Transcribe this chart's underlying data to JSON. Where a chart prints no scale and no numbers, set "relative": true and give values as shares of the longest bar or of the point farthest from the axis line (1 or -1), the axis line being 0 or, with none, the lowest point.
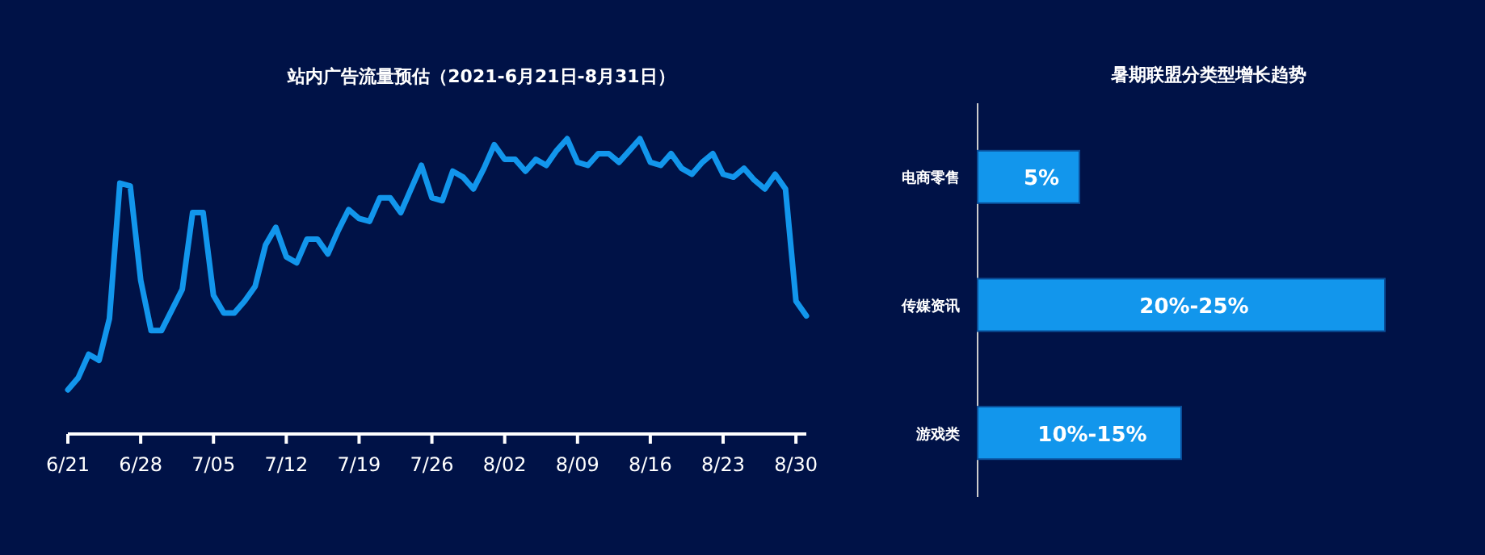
{
  "chart_data": [
    {
      "type": "line",
      "title": "站内广告流量预估（2021-6月21日-8月31日）",
      "relative": true,
      "x": [
        "2021-06-21",
        "2021-06-22",
        "2021-06-23",
        "2021-06-24",
        "2021-06-25",
        "2021-06-26",
        "2021-06-27",
        "2021-06-28",
        "2021-06-29",
        "2021-06-30",
        "2021-07-01",
        "2021-07-02",
        "2021-07-03",
        "2021-07-04",
        "2021-07-05",
        "2021-07-06",
        "2021-07-07",
        "2021-07-08",
        "2021-07-09",
        "2021-07-10",
        "2021-07-11",
        "2021-07-12",
        "2021-07-13",
        "2021-07-14",
        "2021-07-15",
        "2021-07-16",
        "2021-07-17",
        "2021-07-18",
        "2021-07-19",
        "2021-07-20",
        "2021-07-21",
        "2021-07-22",
        "2021-07-23",
        "2021-07-24",
        "2021-07-25",
        "2021-07-26",
        "2021-07-27",
        "2021-07-28",
        "2021-07-29",
        "2021-07-30",
        "2021-07-31",
        "2021-08-01",
        "2021-08-02",
        "2021-08-03",
        "2021-08-04",
        "2021-08-05",
        "2021-08-06",
        "2021-08-07",
        "2021-08-08",
        "2021-08-09",
        "2021-08-10",
        "2021-08-11",
        "2021-08-12",
        "2021-08-13",
        "2021-08-14",
        "2021-08-15",
        "2021-08-16",
        "2021-08-17",
        "2021-08-18",
        "2021-08-19",
        "2021-08-20",
        "2021-08-21",
        "2021-08-22",
        "2021-08-23",
        "2021-08-24",
        "2021-08-25",
        "2021-08-26",
        "2021-08-27",
        "2021-08-28",
        "2021-08-29",
        "2021-08-30",
        "2021-08-31"
      ],
      "series": [
        {
          "color": "#1296ec",
          "values": [
            0.15,
            0.19,
            0.27,
            0.25,
            0.39,
            0.85,
            0.84,
            0.52,
            0.35,
            0.35,
            0.42,
            0.49,
            0.75,
            0.75,
            0.47,
            0.41,
            0.41,
            0.45,
            0.5,
            0.64,
            0.7,
            0.6,
            0.58,
            0.66,
            0.66,
            0.61,
            0.69,
            0.76,
            0.73,
            0.72,
            0.8,
            0.8,
            0.75,
            0.83,
            0.91,
            0.8,
            0.79,
            0.89,
            0.87,
            0.83,
            0.9,
            0.98,
            0.93,
            0.93,
            0.89,
            0.93,
            0.91,
            0.96,
            1.0,
            0.92,
            0.91,
            0.95,
            0.95,
            0.92,
            0.96,
            1.0,
            0.92,
            0.91,
            0.95,
            0.9,
            0.88,
            0.92,
            0.95,
            0.88,
            0.87,
            0.9,
            0.86,
            0.83,
            0.88,
            0.83,
            0.45,
            0.4
          ]
        }
      ],
      "xlim": [
        "2021-06-21",
        "2021-08-31"
      ],
      "xticks": [
        {
          "value": "2021-06-21",
          "label": "6/21"
        },
        {
          "value": "2021-06-28",
          "label": "6/28"
        },
        {
          "value": "2021-07-05",
          "label": "7/05"
        },
        {
          "value": "2021-07-12",
          "label": "7/12"
        },
        {
          "value": "2021-07-19",
          "label": "7/19"
        },
        {
          "value": "2021-07-26",
          "label": "7/26"
        },
        {
          "value": "2021-08-02",
          "label": "8/02"
        },
        {
          "value": "2021-08-09",
          "label": "8/09"
        },
        {
          "value": "2021-08-16",
          "label": "8/16"
        },
        {
          "value": "2021-08-23",
          "label": "8/23"
        },
        {
          "value": "2021-08-30",
          "label": "8/30"
        }
      ],
      "tick_labels": "x",
      "marker": "none",
      "line_style": "solid"
    },
    {
      "type": "bar",
      "title": "暑期联盟分类型增长趋势",
      "orientation": "horizontal",
      "xlim": [
        0,
        20
      ],
      "categories": [
        "电商零售",
        "传媒资讯",
        "游戏类"
      ],
      "series": [
        {
          "color": "#1296ec",
          "values": [
            5,
            20,
            10
          ],
          "value_labels": [
            "5%",
            "20%-25%",
            "10%-15%"
          ]
        }
      ],
      "tick_labels": "y"
    }
  ]
}
